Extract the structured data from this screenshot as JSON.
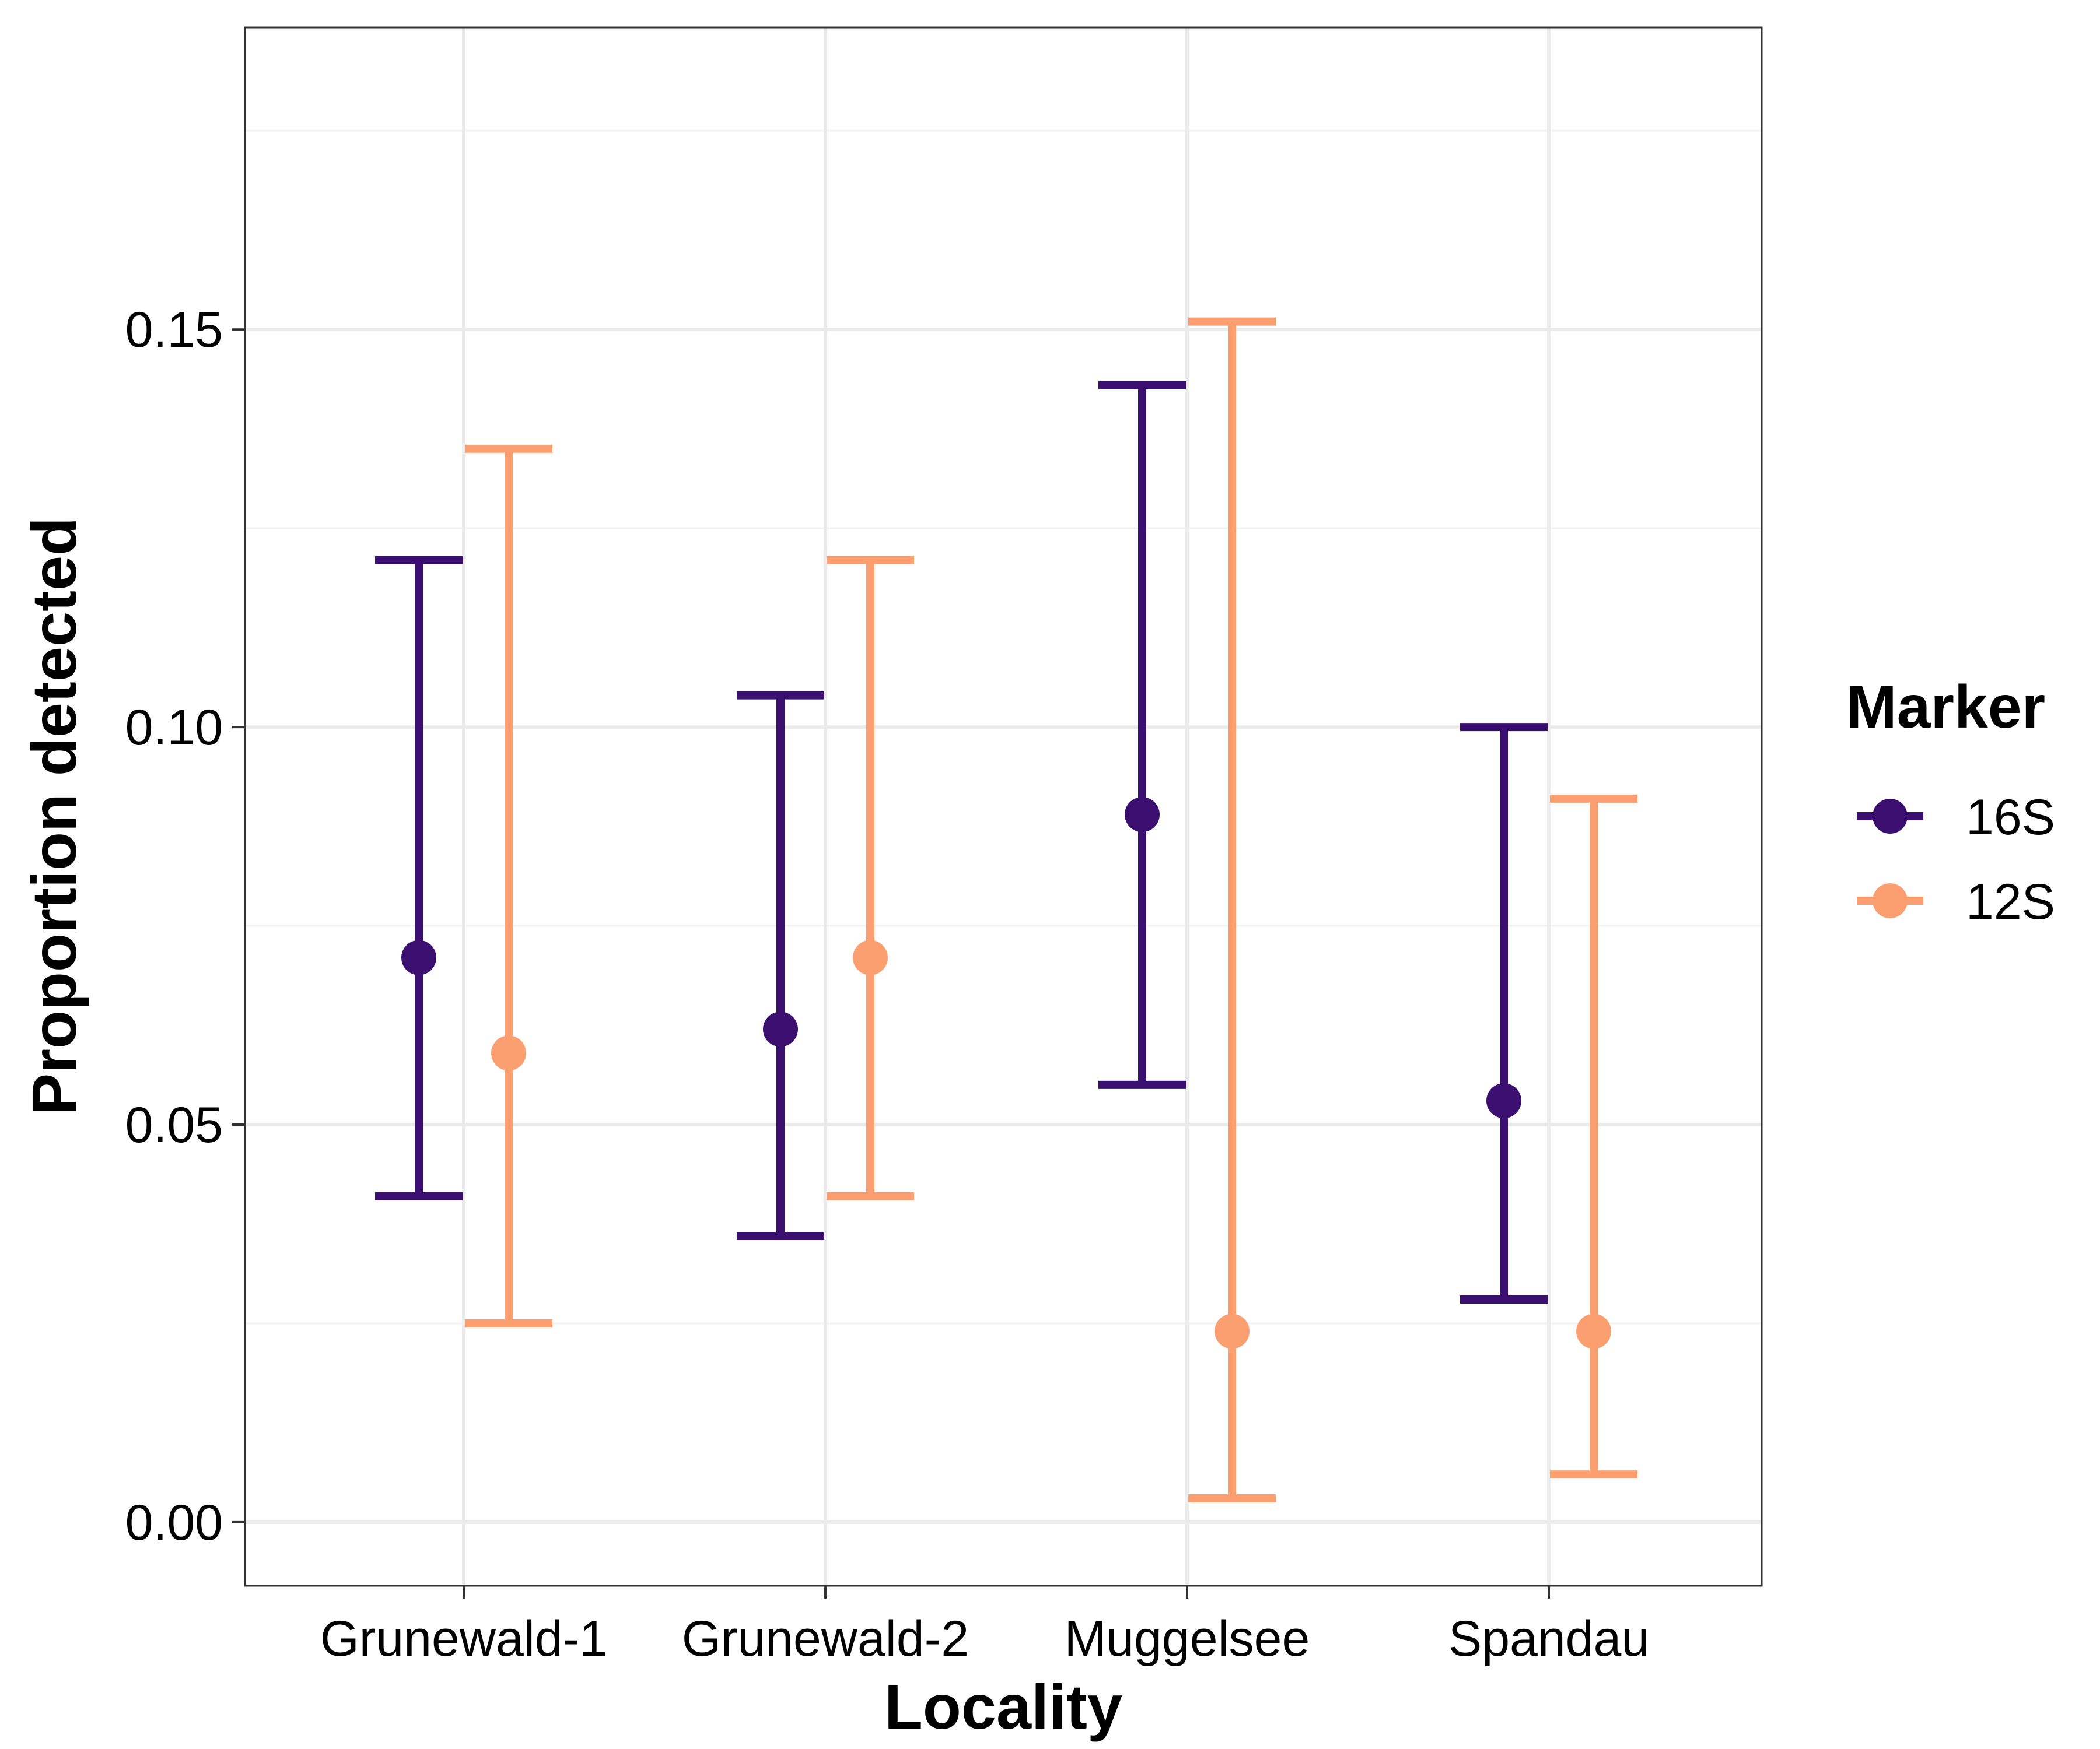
{
  "chart_data": {
    "type": "errorbar",
    "xlabel": "Locality",
    "ylabel": "Proportion detected",
    "categories": [
      "Grunewald-1",
      "Grunewald-2",
      "Muggelsee",
      "Spandau"
    ],
    "ylim": [
      -0.008,
      0.188
    ],
    "yticks": [
      0.0,
      0.05,
      0.1,
      0.15
    ],
    "ytick_labels": [
      "0.00",
      "0.05",
      "0.10",
      "0.15"
    ],
    "grid": true,
    "legend": {
      "title": "Marker",
      "position": "right"
    },
    "series": [
      {
        "name": "16S",
        "color": "#3b0f70",
        "values": [
          0.071,
          0.062,
          0.089,
          0.053
        ],
        "lower": [
          0.041,
          0.036,
          0.055,
          0.028
        ],
        "upper": [
          0.121,
          0.104,
          0.143,
          0.1
        ]
      },
      {
        "name": "12S",
        "color": "#fc9f70",
        "values": [
          0.059,
          0.071,
          0.024,
          0.024
        ],
        "lower": [
          0.025,
          0.041,
          0.003,
          0.006
        ],
        "upper": [
          0.135,
          0.121,
          0.151,
          0.091
        ]
      }
    ]
  }
}
